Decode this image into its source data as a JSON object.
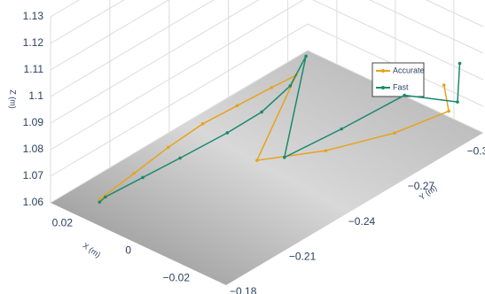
{
  "chart_data": {
    "type": "line3d",
    "xlabel": "X (m)",
    "ylabel": "Y (m)",
    "zlabel": "Z (m)",
    "xlim": [
      -0.03,
      0.03
    ],
    "ylim": [
      -0.31,
      -0.18
    ],
    "zlim": [
      1.06,
      1.13
    ],
    "xticks": [
      {
        "value": -0.02,
        "label": "−0.02"
      },
      0,
      0.02
    ],
    "yticks": [
      {
        "value": -0.18,
        "label": "−0.18"
      },
      {
        "value": -0.21,
        "label": "−0.21"
      },
      {
        "value": -0.24,
        "label": "−0.24"
      },
      {
        "value": -0.27,
        "label": "−0.27"
      },
      {
        "value": -0.3,
        "label": "−0.3"
      }
    ],
    "zticks": [
      1.06,
      1.07,
      1.08,
      1.09,
      1.1,
      1.11,
      1.12,
      1.13
    ],
    "grid": true,
    "legend": "upper-right",
    "series": [
      {
        "name": "Accurate",
        "color": "#e8a21c",
        "x": [
          0.02,
          0.015,
          0.01,
          0.005,
          0.0,
          -0.005,
          -0.01,
          0.0,
          -0.01,
          -0.02,
          -0.025,
          -0.02
        ],
        "y": [
          -0.19,
          -0.2,
          -0.21,
          -0.22,
          -0.23,
          -0.24,
          -0.245,
          -0.24,
          -0.26,
          -0.28,
          -0.3,
          -0.305
        ],
        "z": [
          1.062,
          1.07,
          1.078,
          1.085,
          1.09,
          1.095,
          1.1,
          1.065,
          1.065,
          1.068,
          1.07,
          1.075
        ]
      },
      {
        "name": "Fast",
        "color": "#1a8a6c",
        "x": [
          0.02,
          0.018,
          0.012,
          0.006,
          0.0,
          -0.005,
          -0.008,
          -0.01,
          -0.006,
          -0.012,
          -0.02,
          -0.028,
          -0.022
        ],
        "y": [
          -0.19,
          -0.19,
          -0.2,
          -0.21,
          -0.225,
          -0.235,
          -0.245,
          -0.25,
          -0.245,
          -0.265,
          -0.285,
          -0.3,
          -0.31
        ],
        "z": [
          1.061,
          1.064,
          1.07,
          1.076,
          1.082,
          1.088,
          1.095,
          1.105,
          1.067,
          1.072,
          1.08,
          1.075,
          1.082
        ]
      }
    ]
  }
}
